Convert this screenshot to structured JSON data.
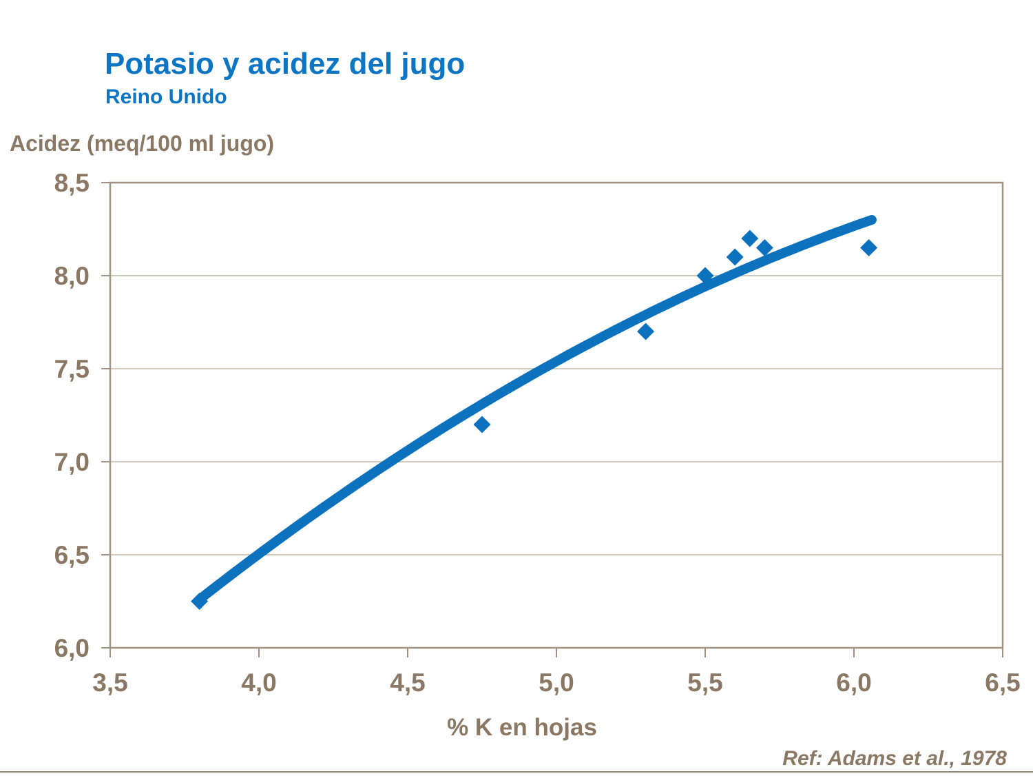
{
  "slide": {
    "title": "Potasio y acidez del jugo",
    "subtitle": "Reino Unido",
    "reference": "Ref: Adams et al., 1978"
  },
  "colors": {
    "title_blue": "#0D76C4",
    "series_blue": "#0C72BE",
    "text_brown": "#8A7865",
    "axis_frame": "#A29282",
    "gridline": "#C2B5A5",
    "footer_rule": "#948575",
    "background": "#FFFFFF"
  },
  "chart_data": {
    "type": "scatter",
    "title": "Potasio y acidez del jugo",
    "subtitle": "Reino Unido",
    "xlabel": "% K en hojas",
    "ylabel": "Acidez (meq/100 ml jugo)",
    "xlim": [
      3.5,
      6.5
    ],
    "ylim": [
      6.0,
      8.5
    ],
    "grid": "horizontal-only",
    "legend": "none",
    "marker": "diamond",
    "x_ticks": [
      {
        "v": 3.5,
        "label": "3,5"
      },
      {
        "v": 4.0,
        "label": "4,0"
      },
      {
        "v": 4.5,
        "label": "4,5"
      },
      {
        "v": 5.0,
        "label": "5,0"
      },
      {
        "v": 5.5,
        "label": "5,5"
      },
      {
        "v": 6.0,
        "label": "6,0"
      },
      {
        "v": 6.5,
        "label": "6,5"
      }
    ],
    "y_ticks": [
      {
        "v": 6.0,
        "label": "6,0"
      },
      {
        "v": 6.5,
        "label": "6,5"
      },
      {
        "v": 7.0,
        "label": "7,0"
      },
      {
        "v": 7.5,
        "label": "7,5"
      },
      {
        "v": 8.0,
        "label": "8,0"
      },
      {
        "v": 8.5,
        "label": "8,5"
      }
    ],
    "points": [
      {
        "x": 3.8,
        "y": 6.25
      },
      {
        "x": 4.75,
        "y": 7.2
      },
      {
        "x": 5.3,
        "y": 7.7
      },
      {
        "x": 5.5,
        "y": 8.0
      },
      {
        "x": 5.6,
        "y": 8.1
      },
      {
        "x": 5.65,
        "y": 8.2
      },
      {
        "x": 5.7,
        "y": 8.15
      },
      {
        "x": 6.05,
        "y": 8.15
      }
    ],
    "trend_curve": {
      "shape": "quadratic",
      "through_points": [
        {
          "x": 3.8,
          "y": 6.26
        },
        {
          "x": 4.9,
          "y": 7.45
        },
        {
          "x": 6.06,
          "y": 8.3
        }
      ]
    }
  }
}
